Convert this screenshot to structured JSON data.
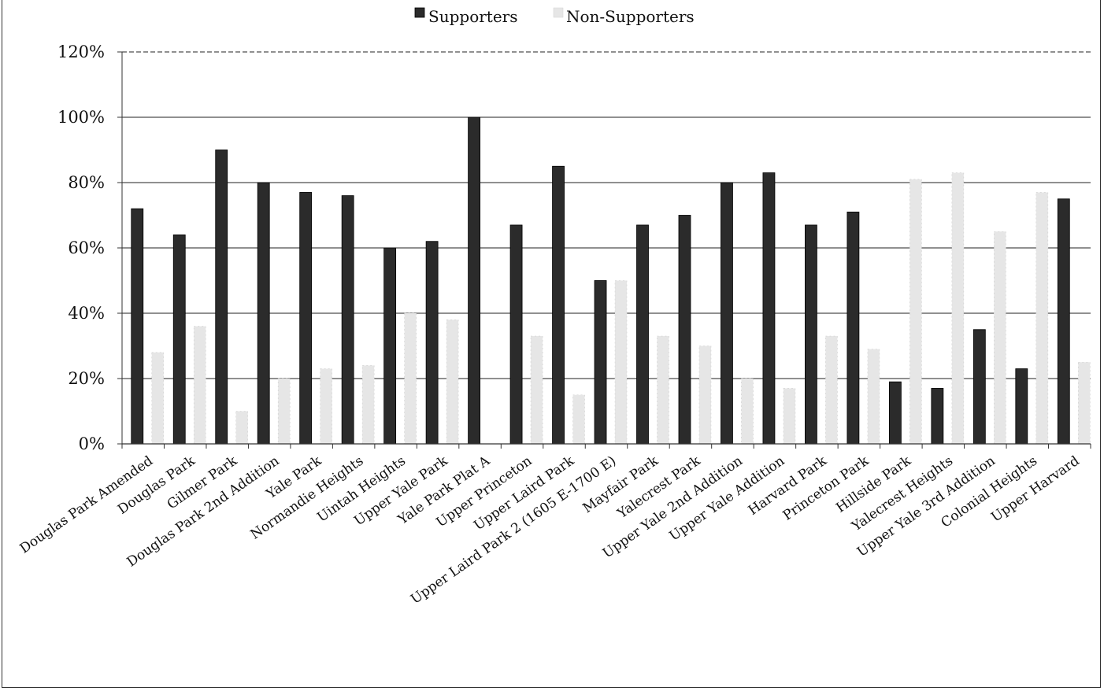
{
  "chart_data": {
    "type": "bar",
    "title": "",
    "xlabel": "",
    "ylabel": "",
    "ylim": [
      0,
      120
    ],
    "yticks": [
      "0%",
      "20%",
      "40%",
      "60%",
      "80%",
      "100%",
      "120%"
    ],
    "grid": true,
    "legend_position": "top-center",
    "colors": {
      "supporters": "#2b2b2b",
      "non_supporters": "#e6e6e6",
      "grid": "#222222"
    },
    "categories": [
      "Douglas Park Amended",
      "Douglas Park",
      "Gilmer Park",
      "Douglas Park 2nd Addition",
      "Yale Park",
      "Normandie Heights",
      "Uintah Heights",
      "Upper Yale Park",
      "Yale Park Plat A",
      "Upper Princeton",
      "Upper Laird Park",
      "Upper Laird Park 2 (1605 E-1700 E)",
      "Mayfair Park",
      "Yalecrest Park",
      "Upper Yale 2nd Addition",
      "Upper Yale Addition",
      "Harvard Park",
      "Princeton Park",
      "Hillside Park",
      "Yalecrest Heights",
      "Upper Yale 3rd Addition",
      "Colonial Heights",
      "Upper Harvard"
    ],
    "series": [
      {
        "name": "Supporters",
        "values": [
          72,
          64,
          90,
          80,
          77,
          76,
          60,
          62,
          100,
          67,
          85,
          50,
          67,
          70,
          80,
          83,
          67,
          71,
          19,
          17,
          35,
          23,
          75
        ]
      },
      {
        "name": "Non-Supporters",
        "values": [
          28,
          36,
          10,
          20,
          23,
          24,
          40,
          38,
          0,
          33,
          15,
          50,
          33,
          30,
          20,
          17,
          33,
          29,
          81,
          83,
          65,
          77,
          25
        ]
      }
    ]
  }
}
